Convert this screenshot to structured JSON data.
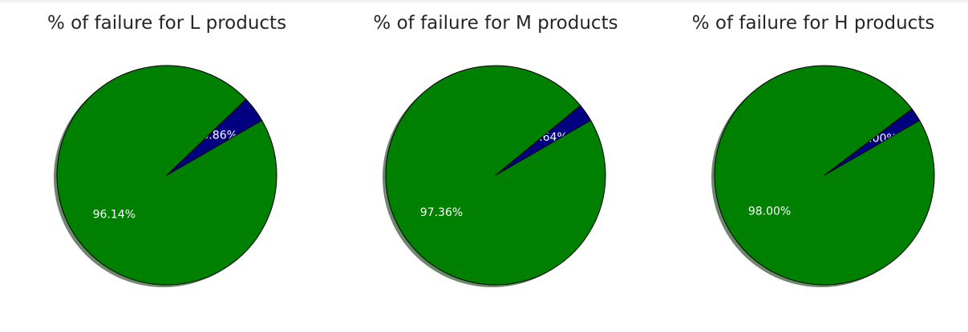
{
  "chart_data": [
    {
      "type": "pie",
      "title": "% of failure for L products",
      "slices": [
        {
          "value": 3.86,
          "label": "3.86%",
          "color": "#000080"
        },
        {
          "value": 96.14,
          "label": "96.14%",
          "color": "#008000"
        }
      ],
      "start_angle": 30,
      "shadow": true
    },
    {
      "type": "pie",
      "title": "% of failure for M products",
      "slices": [
        {
          "value": 2.64,
          "label": "2.64%",
          "color": "#000080"
        },
        {
          "value": 97.36,
          "label": "97.36%",
          "color": "#008000"
        }
      ],
      "start_angle": 30,
      "shadow": true
    },
    {
      "type": "pie",
      "title": "% of failure for H products",
      "slices": [
        {
          "value": 2.0,
          "label": "2.00%",
          "color": "#000080"
        },
        {
          "value": 98.0,
          "label": "98.00%",
          "color": "#008000"
        }
      ],
      "start_angle": 30,
      "shadow": true
    }
  ]
}
